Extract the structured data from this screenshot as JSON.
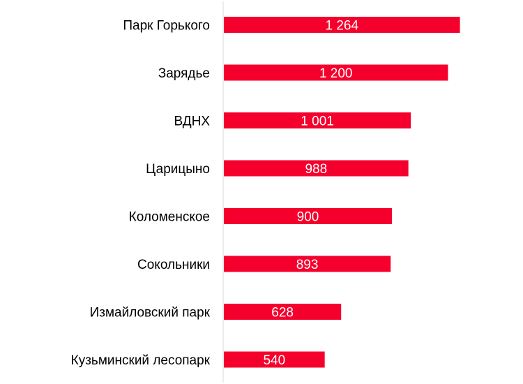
{
  "chart_data": {
    "type": "bar",
    "orientation": "horizontal",
    "categories": [
      "Парк Горького",
      "Зарядье",
      "ВДНХ",
      "Царицыно",
      "Коломенское",
      "Сокольники",
      "Измайловский парк",
      "Кузьминский лесопарк"
    ],
    "values": [
      1264,
      1200,
      1001,
      988,
      900,
      893,
      628,
      540
    ],
    "value_labels": [
      "1 264",
      "1 200",
      "1 001",
      "988",
      "900",
      "893",
      "628",
      "540"
    ],
    "title": "",
    "xlabel": "",
    "ylabel": "",
    "xlim": [
      0,
      1400
    ],
    "grid": false,
    "legend": "none",
    "bar_color": "#f5002d",
    "axis_color": "#d9d9d9"
  }
}
